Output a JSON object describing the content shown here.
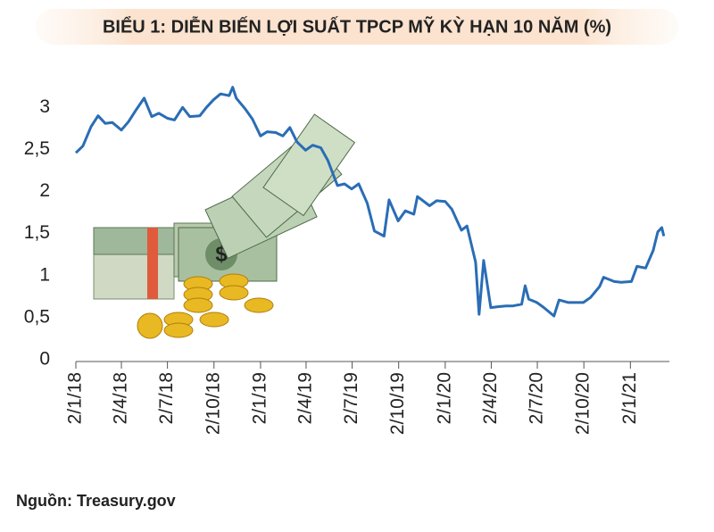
{
  "chart_data": {
    "type": "line",
    "title": "BIỂU 1: DIỄN BIẾN LỢI SUẤT TPCP MỸ KỲ HẠN 10 NĂM (%)",
    "source": "Nguồn: Treasury.gov",
    "color": "#2a6db5",
    "x": [
      "2018-01-02",
      "2018-01-16",
      "2018-02-01",
      "2018-02-15",
      "2018-03-01",
      "2018-03-15",
      "2018-04-02",
      "2018-04-16",
      "2018-05-01",
      "2018-05-17",
      "2018-06-01",
      "2018-06-15",
      "2018-07-02",
      "2018-07-16",
      "2018-08-01",
      "2018-08-15",
      "2018-09-04",
      "2018-09-17",
      "2018-10-01",
      "2018-10-15",
      "2018-11-01",
      "2018-11-08",
      "2018-11-15",
      "2018-12-03",
      "2018-12-17",
      "2019-01-02",
      "2019-01-15",
      "2019-02-01",
      "2019-02-15",
      "2019-03-01",
      "2019-03-15",
      "2019-04-01",
      "2019-04-15",
      "2019-05-01",
      "2019-05-15",
      "2019-06-03",
      "2019-06-17",
      "2019-07-01",
      "2019-07-15",
      "2019-08-01",
      "2019-08-15",
      "2019-09-03",
      "2019-09-13",
      "2019-10-01",
      "2019-10-15",
      "2019-11-01",
      "2019-11-08",
      "2019-12-02",
      "2019-12-16",
      "2020-01-02",
      "2020-01-15",
      "2020-02-03",
      "2020-02-14",
      "2020-03-02",
      "2020-03-09",
      "2020-03-18",
      "2020-04-01",
      "2020-04-15",
      "2020-05-01",
      "2020-05-15",
      "2020-06-01",
      "2020-06-08",
      "2020-06-15",
      "2020-07-01",
      "2020-07-15",
      "2020-08-04",
      "2020-08-14",
      "2020-09-01",
      "2020-09-15",
      "2020-10-01",
      "2020-10-15",
      "2020-11-02",
      "2020-11-10",
      "2020-12-01",
      "2020-12-15",
      "2021-01-04",
      "2021-01-15",
      "2021-02-01",
      "2021-02-16",
      "2021-02-25",
      "2021-03-05",
      "2021-03-09"
    ],
    "values": [
      2.46,
      2.54,
      2.77,
      2.9,
      2.81,
      2.82,
      2.73,
      2.83,
      2.97,
      3.11,
      2.89,
      2.93,
      2.87,
      2.85,
      3.0,
      2.89,
      2.9,
      3.0,
      3.09,
      3.16,
      3.14,
      3.24,
      3.11,
      2.98,
      2.86,
      2.66,
      2.71,
      2.7,
      2.66,
      2.76,
      2.59,
      2.49,
      2.55,
      2.52,
      2.37,
      2.07,
      2.09,
      2.03,
      2.09,
      1.86,
      1.53,
      1.47,
      1.9,
      1.65,
      1.77,
      1.73,
      1.94,
      1.83,
      1.89,
      1.88,
      1.79,
      1.54,
      1.59,
      1.16,
      0.54,
      1.18,
      0.62,
      0.63,
      0.64,
      0.64,
      0.66,
      0.88,
      0.72,
      0.68,
      0.62,
      0.52,
      0.71,
      0.68,
      0.68,
      0.68,
      0.74,
      0.87,
      0.98,
      0.93,
      0.92,
      0.93,
      1.11,
      1.09,
      1.3,
      1.52,
      1.57,
      1.47
    ],
    "xlim": [
      "2018-01-02",
      "2021-03-20"
    ],
    "xticks": [
      {
        "value": "2018-01-02",
        "label": "2/1/18"
      },
      {
        "value": "2018-04-02",
        "label": "2/4/18"
      },
      {
        "value": "2018-07-02",
        "label": "2/7/18"
      },
      {
        "value": "2018-10-02",
        "label": "2/10/18"
      },
      {
        "value": "2019-01-02",
        "label": "2/1/19"
      },
      {
        "value": "2019-04-02",
        "label": "2/4/19"
      },
      {
        "value": "2019-07-02",
        "label": "2/7/19"
      },
      {
        "value": "2019-10-02",
        "label": "2/10/19"
      },
      {
        "value": "2020-01-02",
        "label": "2/1/20"
      },
      {
        "value": "2020-04-02",
        "label": "2/4/20"
      },
      {
        "value": "2020-07-02",
        "label": "2/7/20"
      },
      {
        "value": "2020-10-02",
        "label": "2/10/20"
      },
      {
        "value": "2021-01-02",
        "label": "2/1/21"
      }
    ],
    "ylim": [
      0,
      3.3
    ],
    "yticks": [
      0,
      {
        "value": 0.5,
        "label": "0,5"
      },
      1,
      {
        "value": 1.5,
        "label": "1,5"
      },
      2,
      {
        "value": 2.5,
        "label": "2,5"
      },
      3
    ]
  }
}
